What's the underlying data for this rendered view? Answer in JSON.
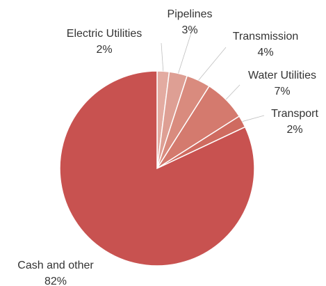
{
  "chart_data": {
    "type": "pie",
    "slices": [
      {
        "label": "Electric Utilities",
        "value_label": "2%",
        "value": 2,
        "color": "#e3aba1"
      },
      {
        "label": "Pipelines",
        "value_label": "3%",
        "value": 3,
        "color": "#de9f94"
      },
      {
        "label": "Transmission",
        "value_label": "4%",
        "value": 4,
        "color": "#d98b7e"
      },
      {
        "label": "Water Utilities",
        "value_label": "7%",
        "value": 7,
        "color": "#d47a6e"
      },
      {
        "label": "Transport",
        "value_label": "2%",
        "value": 2,
        "color": "#cf6b60"
      },
      {
        "label": "Cash and other",
        "value_label": "82%",
        "value": 82,
        "color": "#c85250"
      }
    ],
    "legend": "none",
    "start_angle": "12 o'clock, clockwise"
  }
}
